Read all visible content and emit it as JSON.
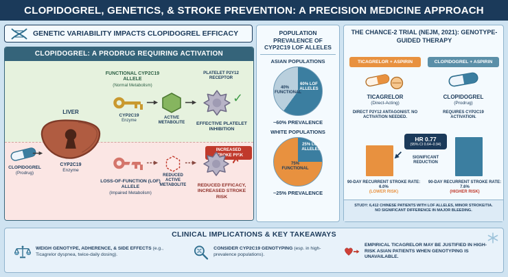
{
  "header": {
    "title": "CLOPIDOGREL, GENETICS, & STROKE PREVENTION: A PRECISION MEDICINE APPROACH"
  },
  "genetics": {
    "section_title": "GENETIC VARIABILITY IMPACTS CLOPIDOGREL EFFICACY",
    "panel_title": "CLOPIDOGREL: A PRODRUG REQUIRING ACTIVATION",
    "liver_label": "LIVER",
    "enzyme_label": "CYP2C19",
    "enzyme_sublabel": "Enzyme",
    "drug_label": "CLOPIDOGREL",
    "drug_sublabel": "(Prodrug)",
    "functional_path": {
      "allele_title": "FUNCTIONAL CYP2C19 ALLELE",
      "allele_subtitle": "(Normal Metabolism)",
      "enzyme_label": "CYP2C19",
      "enzyme_sublabel": "Enzyme",
      "metabolite_label": "ACTIVE METABOLITE",
      "receptor_label": "PLATELET P2Y12 RECEPTOR",
      "outcome": "EFFECTIVE PLATELET INHIBITION",
      "check_glyph": "✓"
    },
    "lof_path": {
      "allele_title": "LOSS-OF-FUNCTION (LOF) ALLELE",
      "allele_subtitle": "(Impaired Metabolism)",
      "metabolite_label": "REDUCED ACTIVE METABOLITE",
      "outcome": "REDUCED EFFICACY, INCREASED STROKE RISK",
      "risk_badge": "INCREASED STROKE RISK",
      "cross_glyph": "✗"
    }
  },
  "prevalence": {
    "title": "POPULATION PREVALENCE OF CYP2C19 LOF ALLELES",
    "asian": {
      "label": "ASIAN POPULATIONS",
      "lof_pct": 60,
      "functional_pct": 40,
      "lof_slice_label": "60% LOF ALLELES",
      "functional_slice_label": "40% FUNCTIONAL",
      "prevalence_note": "~60% PREVALENCE",
      "slice_colors": [
        "#3b7ea0",
        "#b9cfdd"
      ]
    },
    "white": {
      "label": "WHITE POPULATIONS",
      "lof_pct": 25,
      "functional_pct": 75,
      "lof_slice_label": "25% LOF ALLELES",
      "functional_slice_label": "75% FUNCTIONAL",
      "prevalence_note": "~25% PREVALENCE",
      "slice_colors": [
        "#3b7ea0",
        "#e8913f"
      ]
    }
  },
  "trial": {
    "title": "THE CHANCE-2 TRIAL (NEJM, 2021): GENOTYPE-GUIDED THERAPY",
    "ticagrelor": {
      "header": "TICAGRELOR + ASPIRIN",
      "drug": "TICAGRELOR",
      "drug_sub": "(Direct-Acting)",
      "note": "DIRECT P2Y12 ANTAGONIST. NO ACTIVATION NEEDED.",
      "rate_pct": 6.0,
      "rate_label": "90-DAY RECURRENT STROKE RATE: 6.0%",
      "risk_label": "(LOWER RISK)",
      "color": "#e8913f"
    },
    "clopidogrel": {
      "header": "CLOPIDOGREL + ASPIRIN",
      "drug": "CLOPIDOGREL",
      "drug_sub": "(Prodrug)",
      "note": "REQUIRES CYP2C19 ACTIVATION.",
      "rate_pct": 7.6,
      "rate_label": "90-DAY RECURRENT STROKE RATE: 7.6%",
      "risk_label": "(HIGHER RISK)",
      "color": "#3b7ea0"
    },
    "hr_label": "HR 0.77",
    "hr_ci": "(95% CI 0.64–0.94)",
    "significance": "SIGNIFICANT REDUCTION",
    "study_line1": "STUDY: 6,412 CHINESE PATIENTS WITH LOF ALLELES, MINOR STROKE/TIA.",
    "study_line2": "NO SIGNIFICANT DIFFERENCE IN MAJOR BLEEDING."
  },
  "takeaways": {
    "title": "CLINICAL IMPLICATIONS & KEY TAKEAWAYS",
    "items": [
      {
        "bold": "WEIGH GENOTYPE, ADHERENCE, & SIDE EFFECTS",
        "rest": "(e.g., Ticagrelor dyspnea, twice-daily dosing)."
      },
      {
        "bold": "CONSIDER CYP2C19 GENOTYPING",
        "rest": "(esp. in high-prevalence populations)."
      },
      {
        "bold": "EMPIRICAL TICAGRELOR MAY BE JUSTIFIED IN HIGH-RISK ASIAN PATIENTS WHEN GENOTYPING IS UNAVAILABLE.",
        "rest": ""
      }
    ]
  },
  "colors": {
    "navy": "#1b3a5a",
    "panel_teal": "#35647a",
    "orange": "#e8913f",
    "steel_blue": "#3b7ea0",
    "arm_teal": "#5b8fa8",
    "alert_red": "#c0392b",
    "check_green": "#3f9b48"
  },
  "chart_data": [
    {
      "type": "pie",
      "title": "ASIAN POPULATIONS",
      "labels": [
        "60% LOF ALLELES",
        "40% FUNCTIONAL"
      ],
      "values": [
        60,
        40
      ],
      "note": "~60% PREVALENCE"
    },
    {
      "type": "pie",
      "title": "WHITE POPULATIONS",
      "labels": [
        "25% LOF ALLELES",
        "75% FUNCTIONAL"
      ],
      "values": [
        25,
        75
      ],
      "note": "~25% PREVALENCE"
    },
    {
      "type": "bar",
      "title": "90-DAY RECURRENT STROKE RATE",
      "categories": [
        "TICAGRELOR + ASPIRIN",
        "CLOPIDOGREL + ASPIRIN"
      ],
      "values": [
        6.0,
        7.6
      ],
      "annotation": "HR 0.77 (95% CI 0.64–0.94), SIGNIFICANT REDUCTION"
    }
  ]
}
